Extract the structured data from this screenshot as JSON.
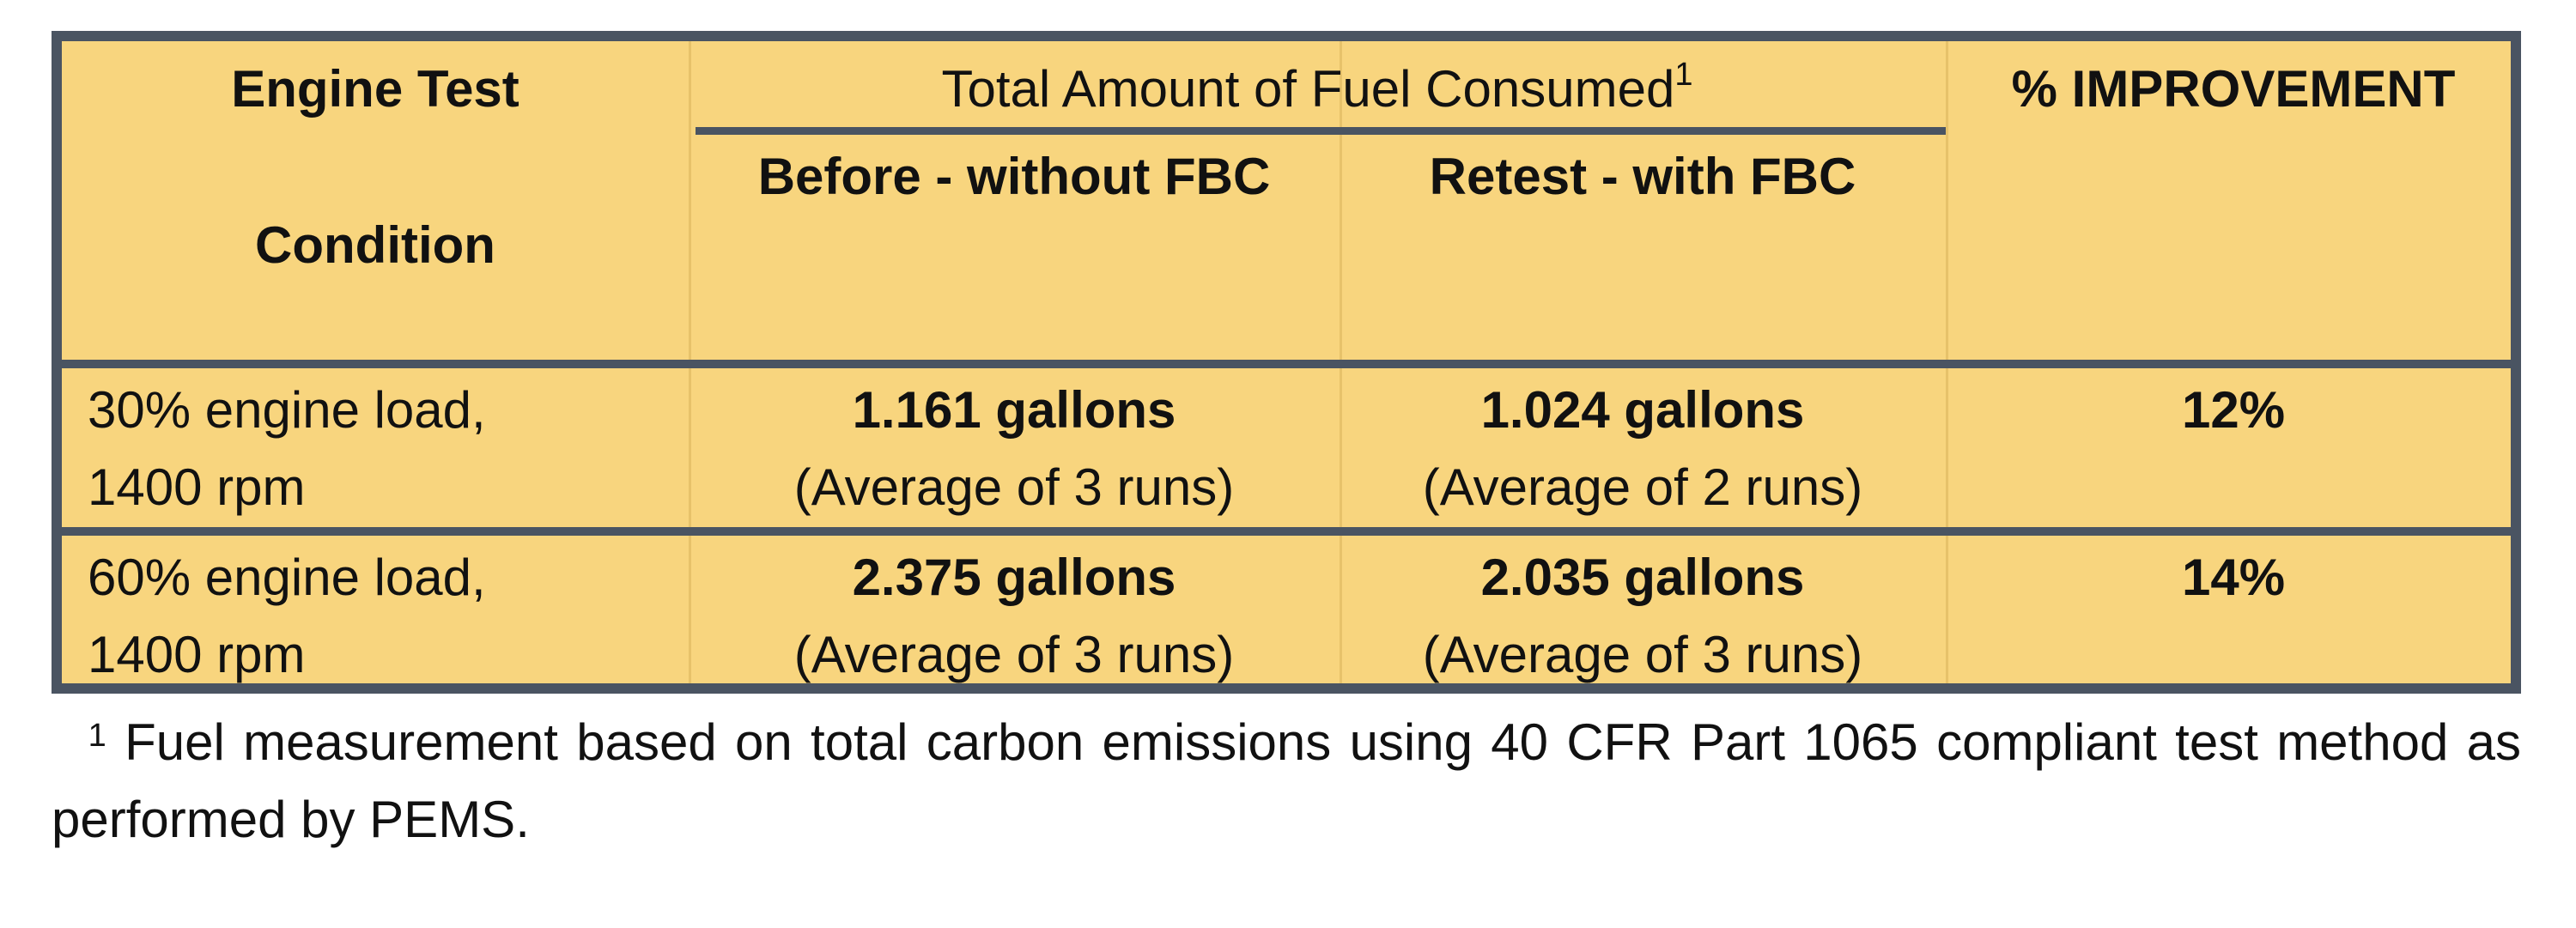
{
  "table": {
    "header": {
      "engine_col_line1": "Engine Test",
      "engine_col_line2": "Condition",
      "fuel_group": "Total Amount of Fuel Consumed",
      "fuel_group_footnote_mark": "1",
      "before_col": "Before - without FBC",
      "retest_col": "Retest - with FBC",
      "improvement_col": "% IMPROVEMENT"
    },
    "rows": [
      {
        "condition_line1": "30% engine load,",
        "condition_line2": "1400 rpm",
        "before_amount": "1.161 gallons",
        "before_note": "(Average of 3 runs)",
        "retest_amount": "1.024 gallons",
        "retest_note": "(Average of 2 runs)",
        "improvement": "12%"
      },
      {
        "condition_line1": "60% engine load,",
        "condition_line2": "1400 rpm",
        "before_amount": "2.375 gallons",
        "before_note": "(Average of 3 runs)",
        "retest_amount": "2.035 gallons",
        "retest_note": "(Average of 3 runs)",
        "improvement": "14%"
      }
    ]
  },
  "footnote": {
    "mark": "1",
    "text": "Fuel measurement based on total carbon emissions using 40 CFR Part 1065 compliant test method as performed by PEMS."
  },
  "colors": {
    "table_fill": "#f8d57e",
    "border": "#4a5462"
  }
}
